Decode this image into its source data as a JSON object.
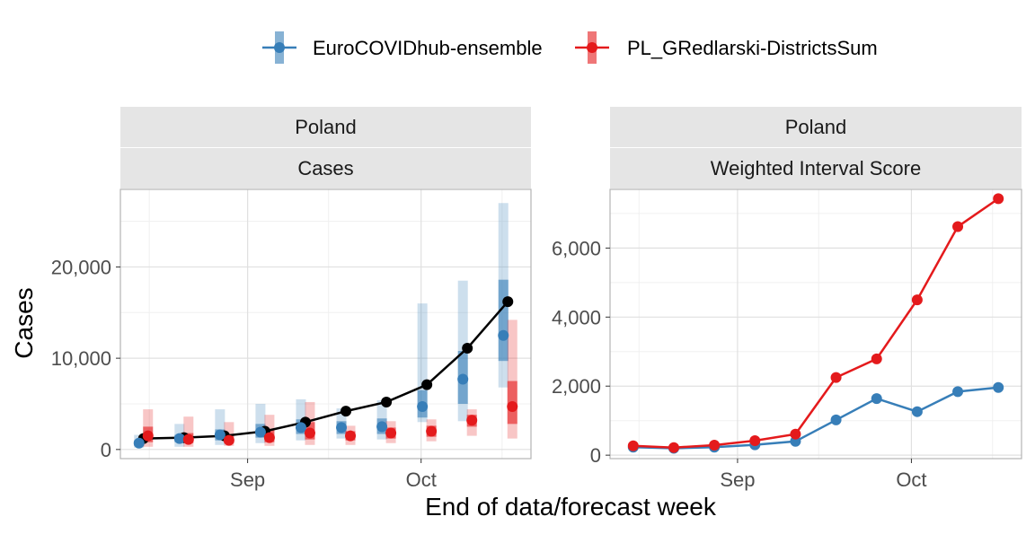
{
  "legend": {
    "items": [
      {
        "label": "EuroCOVIDhub-ensemble",
        "color": "#377EB8"
      },
      {
        "label": "PL_GRedlarski-DistrictsSum",
        "color": "#E41A1C"
      }
    ]
  },
  "xlabel": "End of data/forecast week",
  "ylabel": "Cases",
  "observed_color": "#000000",
  "chart_data": [
    {
      "type": "line",
      "strip_top": "Poland",
      "strip_bottom": "Cases",
      "x_ticks": [
        "Sep",
        "Oct"
      ],
      "y_ticks": [
        "0",
        "10,000",
        "20,000"
      ],
      "ylim": [
        -1000,
        28500
      ],
      "observed": {
        "x": [
          "2021-08-14",
          "2021-08-21",
          "2021-08-28",
          "2021-09-04",
          "2021-09-11",
          "2021-09-18",
          "2021-09-25",
          "2021-10-02",
          "2021-10-09",
          "2021-10-16"
        ],
        "values": [
          1200,
          1300,
          1500,
          2000,
          3000,
          4200,
          5200,
          7100,
          11100,
          16200
        ]
      },
      "series": [
        {
          "name": "EuroCOVIDhub-ensemble",
          "x": [
            "2021-08-14",
            "2021-08-21",
            "2021-08-28",
            "2021-09-04",
            "2021-09-11",
            "2021-09-18",
            "2021-09-25",
            "2021-10-02",
            "2021-10-09",
            "2021-10-16"
          ],
          "median": [
            700,
            1200,
            1600,
            1900,
            2400,
            2400,
            2500,
            4700,
            7700,
            12500
          ],
          "lower_90": [
            200,
            300,
            500,
            700,
            1000,
            1200,
            1100,
            3000,
            3100,
            6800
          ],
          "upper_90": [
            1600,
            2800,
            4400,
            5000,
            5500,
            4500,
            5400,
            16000,
            18500,
            27000
          ],
          "lower_50": [
            400,
            800,
            1000,
            1300,
            1700,
            1700,
            1700,
            3500,
            5000,
            9700
          ],
          "upper_50": [
            1000,
            1600,
            2200,
            2800,
            3300,
            3100,
            3400,
            6500,
            10800,
            18600
          ]
        },
        {
          "name": "PL_GRedlarski-DistrictsSum",
          "x": [
            "2021-08-14",
            "2021-08-21",
            "2021-08-28",
            "2021-09-04",
            "2021-09-11",
            "2021-09-18",
            "2021-09-25",
            "2021-10-02",
            "2021-10-09",
            "2021-10-16"
          ],
          "median": [
            1500,
            1100,
            1000,
            1300,
            1800,
            1500,
            1800,
            2000,
            3200,
            4700
          ],
          "lower_90": [
            300,
            300,
            400,
            400,
            500,
            500,
            700,
            900,
            1500,
            1200
          ],
          "upper_90": [
            4400,
            3600,
            3000,
            3800,
            5200,
            2600,
            3100,
            3300,
            4400,
            14200
          ],
          "lower_50": [
            800,
            700,
            700,
            800,
            1100,
            1000,
            1200,
            1400,
            2500,
            2800
          ],
          "upper_50": [
            2500,
            1800,
            1600,
            2200,
            3000,
            2000,
            2400,
            2600,
            3800,
            7500
          ]
        }
      ]
    },
    {
      "type": "line",
      "strip_top": "Poland",
      "strip_bottom": "Weighted Interval Score",
      "x_ticks": [
        "Sep",
        "Oct"
      ],
      "y_ticks": [
        "0",
        "2,000",
        "4,000",
        "6,000"
      ],
      "ylim": [
        -100,
        7700
      ],
      "series": [
        {
          "name": "EuroCOVIDhub-ensemble",
          "x": [
            "2021-08-14",
            "2021-08-21",
            "2021-08-28",
            "2021-09-04",
            "2021-09-11",
            "2021-09-18",
            "2021-09-25",
            "2021-10-02",
            "2021-10-09",
            "2021-10-16"
          ],
          "values": [
            230,
            200,
            230,
            300,
            400,
            1020,
            1640,
            1260,
            1840,
            1960
          ]
        },
        {
          "name": "PL_GRedlarski-DistrictsSum",
          "x": [
            "2021-08-14",
            "2021-08-21",
            "2021-08-28",
            "2021-09-04",
            "2021-09-11",
            "2021-09-18",
            "2021-09-25",
            "2021-10-02",
            "2021-10-09",
            "2021-10-16"
          ],
          "values": [
            270,
            220,
            290,
            420,
            610,
            2250,
            2790,
            4500,
            6620,
            7430
          ]
        }
      ]
    }
  ]
}
